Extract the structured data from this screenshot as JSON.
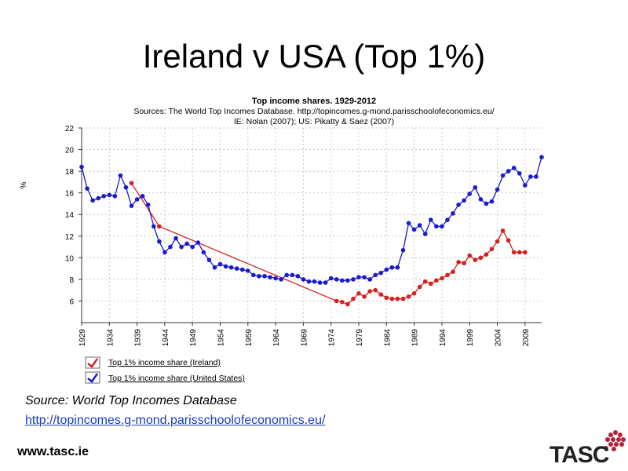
{
  "slide": {
    "title": "Ireland v USA (Top 1%)",
    "source_text": "Source: World Top Incomes Database",
    "source_url": "http://topincomes.g-mond.parisschoolofeconomics.eu/",
    "website": "www.tasc.ie",
    "logo_text": "TASC"
  },
  "colors": {
    "ireland": "#d42020",
    "usa": "#1a1ad0"
  },
  "chart_data": {
    "type": "line",
    "title": "Top income shares. 1929-2012",
    "subtitle_1": "Sources: The World Top Incomes Database. http://topincomes.g-mond.parisschoolofeconomics.eu/",
    "subtitle_2": "IE: Nolan (2007); US: Pikatty & Saez (2007)",
    "ylabel": "%",
    "xlabel": "",
    "xlim": [
      1929,
      2012
    ],
    "ylim": [
      4,
      22
    ],
    "yticks": [
      6,
      8,
      10,
      12,
      14,
      16,
      18,
      20,
      22
    ],
    "xticks": [
      "1929",
      "1934",
      "1939",
      "1944",
      "1949",
      "1954",
      "1959",
      "1964",
      "1969",
      "1974",
      "1979",
      "1984",
      "1989",
      "1994",
      "1999",
      "2004",
      "2009"
    ],
    "legend_position": "bottom-left",
    "series": [
      {
        "name": "Top 1% income share (Ireland)",
        "x": [
          1938,
          1943,
          1975,
          1976,
          1977,
          1978,
          1979,
          1980,
          1981,
          1982,
          1983,
          1984,
          1985,
          1986,
          1987,
          1988,
          1989,
          1990,
          1991,
          1992,
          1993,
          1994,
          1995,
          1996,
          1997,
          1998,
          1999,
          2000,
          2001,
          2002,
          2003,
          2004,
          2005,
          2006,
          2007,
          2008,
          2009
        ],
        "values": [
          16.9,
          12.9,
          6.0,
          5.9,
          5.7,
          6.2,
          6.7,
          6.4,
          6.9,
          7.0,
          6.6,
          6.3,
          6.2,
          6.2,
          6.2,
          6.4,
          6.7,
          7.3,
          7.8,
          7.6,
          7.9,
          8.1,
          8.4,
          8.7,
          9.6,
          9.5,
          10.2,
          9.8,
          10.0,
          10.3,
          10.8,
          11.5,
          12.5,
          11.6,
          10.5,
          10.5,
          10.5
        ]
      },
      {
        "name": "Top 1% income share (United States)",
        "x": [
          1929,
          1930,
          1931,
          1932,
          1933,
          1934,
          1935,
          1936,
          1937,
          1938,
          1939,
          1940,
          1941,
          1942,
          1943,
          1944,
          1945,
          1946,
          1947,
          1948,
          1949,
          1950,
          1951,
          1952,
          1953,
          1954,
          1955,
          1956,
          1957,
          1958,
          1959,
          1960,
          1961,
          1962,
          1963,
          1964,
          1965,
          1966,
          1967,
          1968,
          1969,
          1970,
          1971,
          1972,
          1973,
          1974,
          1975,
          1976,
          1977,
          1978,
          1979,
          1980,
          1981,
          1982,
          1983,
          1984,
          1985,
          1986,
          1987,
          1988,
          1989,
          1990,
          1991,
          1992,
          1993,
          1994,
          1995,
          1996,
          1997,
          1998,
          1999,
          2000,
          2001,
          2002,
          2003,
          2004,
          2005,
          2006,
          2007,
          2008,
          2009,
          2010,
          2011,
          2012
        ],
        "values": [
          18.4,
          16.4,
          15.3,
          15.5,
          15.7,
          15.8,
          15.7,
          17.6,
          16.5,
          14.8,
          15.4,
          15.7,
          14.9,
          12.9,
          11.5,
          10.5,
          11.0,
          11.8,
          11.0,
          11.3,
          11.0,
          11.4,
          10.5,
          9.8,
          9.1,
          9.4,
          9.2,
          9.1,
          9.0,
          8.9,
          8.8,
          8.4,
          8.3,
          8.3,
          8.2,
          8.1,
          8.0,
          8.4,
          8.4,
          8.3,
          8.0,
          7.8,
          7.8,
          7.7,
          7.7,
          8.1,
          8.0,
          7.9,
          7.9,
          8.0,
          8.2,
          8.2,
          8.0,
          8.4,
          8.6,
          8.9,
          9.1,
          9.1,
          10.7,
          13.2,
          12.6,
          13.0,
          12.2,
          13.5,
          12.9,
          12.9,
          13.5,
          14.1,
          14.9,
          15.3,
          15.9,
          16.5,
          15.4,
          15.0,
          15.2,
          16.3,
          17.6,
          18.0,
          18.3,
          17.8,
          16.7,
          17.5,
          17.5,
          19.3
        ]
      }
    ]
  }
}
